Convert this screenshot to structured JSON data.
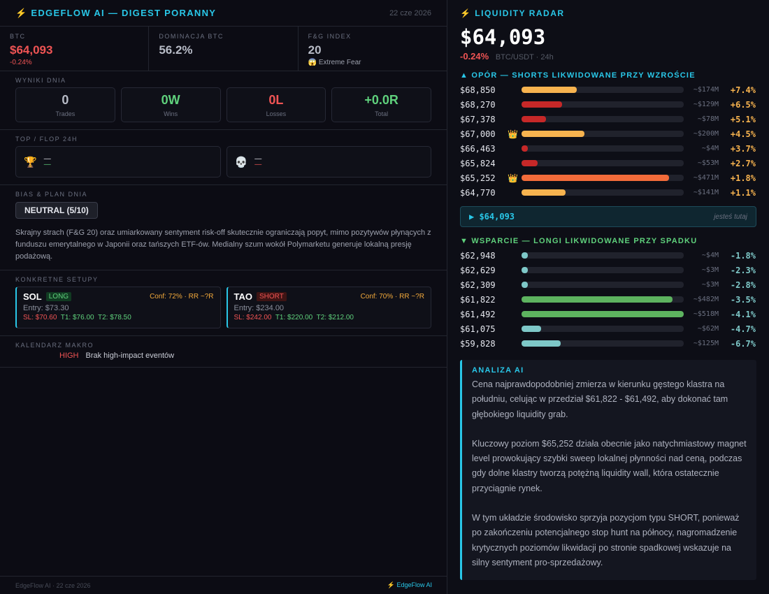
{
  "header": {
    "title": "⚡ EDGEFLOW AI — DIGEST PORANNY",
    "date": "22 cze 2026"
  },
  "stats": [
    {
      "label": "BTC",
      "value": "$64,093",
      "sub": "-0.24%",
      "value_color": "#f05454",
      "sub_color": "#f05454"
    },
    {
      "label": "DOMINACJA BTC",
      "value": "56.2%",
      "sub": "",
      "value_color": "#b7bbc6",
      "sub_color": "#b7bbc6"
    },
    {
      "label": "F&G INDEX",
      "value": "20",
      "sub": "😱 Extreme Fear",
      "value_color": "#b7bbc6",
      "sub_color": "#9ca0ad"
    }
  ],
  "results": {
    "label": "WYNIKI DNIA",
    "items": [
      {
        "value": "0",
        "label": "Trades",
        "color": "#b7bbc6"
      },
      {
        "value": "0W",
        "label": "Wins",
        "color": "#5fd17c"
      },
      {
        "value": "0L",
        "label": "Losses",
        "color": "#f05454"
      },
      {
        "value": "+0.0R",
        "label": "Total",
        "color": "#5fd17c"
      }
    ]
  },
  "topflop": {
    "label": "TOP / FLOP 24H",
    "top": {
      "icon": "🏆",
      "value": "—",
      "sub": "—"
    },
    "flop": {
      "icon": "💀",
      "value": "—",
      "sub": "—"
    }
  },
  "bias": {
    "label": "BIAS & PLAN DNIA",
    "badge": "NEUTRAL (5/10)",
    "text": "Skrajny strach (F&G 20) oraz umiarkowany sentyment risk-off skutecznie ograniczają popyt, mimo pozytywów płynących z funduszu emerytalnego w Japonii oraz tańszych ETF-ów. Medialny szum wokół Polymarketu generuje lokalną presję podażową."
  },
  "setups": {
    "label": "KONKRETNE SETUPY",
    "items": [
      {
        "symbol": "SOL",
        "side": "LONG",
        "conf": "Conf: 72% · RR ~?R",
        "entry": "Entry: $73.30",
        "sl": "SL: $70.60",
        "t1": "T1: $76.00",
        "t2": "T2: $78.50"
      },
      {
        "symbol": "TAO",
        "side": "SHORT",
        "conf": "Conf: 70% · RR ~?R",
        "entry": "Entry: $234.00",
        "sl": "SL: $242.00",
        "t1": "T1: $220.00",
        "t2": "T2: $212.00"
      }
    ]
  },
  "calendar": {
    "label": "KALENDARZ MAKRO",
    "impact": "HIGH",
    "text": "Brak high-impact eventów"
  },
  "footer": {
    "left": "EdgeFlow AI · 22 cze 2026",
    "right": "⚡ EdgeFlow AI"
  },
  "radar": {
    "title": "⚡ LIQUIDITY RADAR",
    "price": "$64,093",
    "change": "-0.24%",
    "pair": "BTC/USDT · 24h",
    "resistance_title": "▲ OPÓR — SHORTS LIKWIDOWANE PRZY WZROŚCIE",
    "support_title": "▼ WSPARCIE — LONGI LIKWIDOWANE PRZY SPADKU",
    "resistance": [
      {
        "price": "$68,850",
        "crown": "",
        "amount": "~$174M",
        "pct": "+7.4%",
        "fill": 0.34,
        "color": "#f7b34f"
      },
      {
        "price": "$68,270",
        "crown": "",
        "amount": "~$129M",
        "pct": "+6.5%",
        "fill": 0.25,
        "color": "#c62828"
      },
      {
        "price": "$67,378",
        "crown": "",
        "amount": "~$78M",
        "pct": "+5.1%",
        "fill": 0.15,
        "color": "#c62828"
      },
      {
        "price": "$67,000",
        "crown": "👑",
        "amount": "~$200M",
        "pct": "+4.5%",
        "fill": 0.39,
        "color": "#f7b34f"
      },
      {
        "price": "$66,463",
        "crown": "",
        "amount": "~$4M",
        "pct": "+3.7%",
        "fill": 0.04,
        "color": "#c62828"
      },
      {
        "price": "$65,824",
        "crown": "",
        "amount": "~$53M",
        "pct": "+2.7%",
        "fill": 0.1,
        "color": "#c62828"
      },
      {
        "price": "$65,252",
        "crown": "👑",
        "amount": "~$471M",
        "pct": "+1.8%",
        "fill": 0.91,
        "color": "#f26b3a"
      },
      {
        "price": "$64,770",
        "crown": "",
        "amount": "~$141M",
        "pct": "+1.1%",
        "fill": 0.27,
        "color": "#f7b34f"
      }
    ],
    "here": {
      "price": "▶ $64,093",
      "text": "jesteś tutaj"
    },
    "support": [
      {
        "price": "$62,948",
        "crown": "",
        "amount": "~$4M",
        "pct": "-1.8%",
        "fill": 0.04,
        "color": "#7ec8c8"
      },
      {
        "price": "$62,629",
        "crown": "",
        "amount": "~$3M",
        "pct": "-2.3%",
        "fill": 0.04,
        "color": "#7ec8c8"
      },
      {
        "price": "$62,309",
        "crown": "",
        "amount": "~$3M",
        "pct": "-2.8%",
        "fill": 0.04,
        "color": "#7ec8c8"
      },
      {
        "price": "$61,822",
        "crown": "",
        "amount": "~$482M",
        "pct": "-3.5%",
        "fill": 0.93,
        "color": "#5db35f"
      },
      {
        "price": "$61,492",
        "crown": "",
        "amount": "~$518M",
        "pct": "-4.1%",
        "fill": 1.0,
        "color": "#5db35f"
      },
      {
        "price": "$61,075",
        "crown": "",
        "amount": "~$62M",
        "pct": "-4.7%",
        "fill": 0.12,
        "color": "#7ec8c8"
      },
      {
        "price": "$59,828",
        "crown": "",
        "amount": "~$125M",
        "pct": "-6.7%",
        "fill": 0.24,
        "color": "#7ec8c8"
      }
    ],
    "colors": {
      "res_title": "#29c7e8",
      "sup_title": "#5fd17c",
      "res_pct": "#f7b34f",
      "sup_pct": "#7ec8c8",
      "res_pct_alt": "#ff8a80"
    }
  },
  "analysis": {
    "title": "ANALIZA AI",
    "paragraphs": [
      "Cena najprawdopodobniej zmierza w kierunku gęstego klastra na południu, celując w przedział $61,822 - $61,492, aby dokonać tam głębokiego liquidity grab.",
      "Kluczowy poziom $65,252 działa obecnie jako natychmiastowy magnet level prowokujący szybki sweep lokalnej płynności nad ceną, podczas gdy dolne klastry tworzą potężną liquidity wall, która ostatecznie przyciągnie rynek.",
      "W tym układzie środowisko sprzyja pozycjom typu SHORT, ponieważ po zakończeniu potencjalnego stop hunt na północy, nagromadzenie krytycznych poziomów likwidacji po stronie spadkowej wskazuje na silny sentyment pro-sprzedażowy."
    ]
  }
}
